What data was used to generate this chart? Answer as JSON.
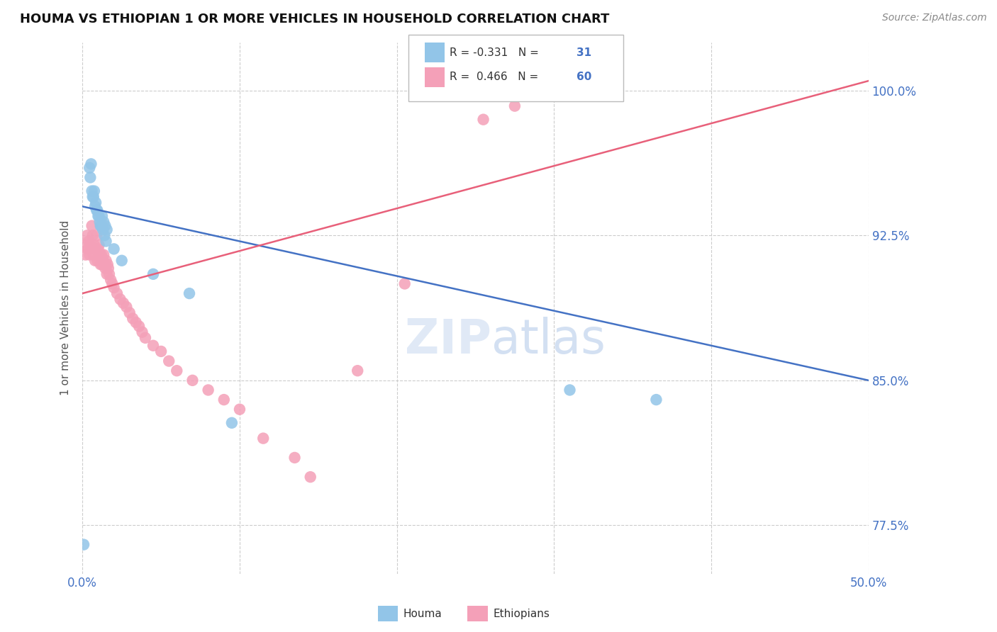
{
  "title": "HOUMA VS ETHIOPIAN 1 OR MORE VEHICLES IN HOUSEHOLD CORRELATION CHART",
  "source": "Source: ZipAtlas.com",
  "ylabel": "1 or more Vehicles in Household",
  "xlim": [
    0.0,
    50.0
  ],
  "ylim": [
    75.0,
    102.5
  ],
  "y_ticks": [
    77.5,
    85.0,
    92.5,
    100.0
  ],
  "houma_R": -0.331,
  "houma_N": 31,
  "ethiopian_R": 0.466,
  "ethiopian_N": 60,
  "houma_color": "#92C5E8",
  "ethiopian_color": "#F4A0B8",
  "houma_line_color": "#4472C4",
  "ethiopian_line_color": "#E8607A",
  "houma_x": [
    0.08,
    0.55,
    0.65,
    0.75,
    0.85,
    0.95,
    1.05,
    1.15,
    1.25,
    1.35,
    1.45,
    1.55,
    0.45,
    0.5,
    0.6,
    0.7,
    0.8,
    0.9,
    1.0,
    1.1,
    1.2,
    1.3,
    1.4,
    1.5,
    2.0,
    2.5,
    4.5,
    6.8,
    9.5,
    31.0,
    36.5
  ],
  "houma_y": [
    76.5,
    96.2,
    94.5,
    94.8,
    94.2,
    93.8,
    93.5,
    93.0,
    93.5,
    93.2,
    93.0,
    92.8,
    96.0,
    95.5,
    94.8,
    94.5,
    94.0,
    93.8,
    93.5,
    93.2,
    93.0,
    92.8,
    92.5,
    92.2,
    91.8,
    91.2,
    90.5,
    89.5,
    82.8,
    84.5,
    84.0
  ],
  "ethiopian_x": [
    0.1,
    0.2,
    0.3,
    0.35,
    0.4,
    0.45,
    0.5,
    0.55,
    0.6,
    0.65,
    0.7,
    0.75,
    0.8,
    0.85,
    0.9,
    0.95,
    1.0,
    1.05,
    1.1,
    1.15,
    1.2,
    1.25,
    1.3,
    1.35,
    1.4,
    1.45,
    1.5,
    1.55,
    1.6,
    1.65,
    1.7,
    1.8,
    1.9,
    2.0,
    2.2,
    2.4,
    2.6,
    2.8,
    3.0,
    3.2,
    3.4,
    3.6,
    3.8,
    4.0,
    4.5,
    5.0,
    5.5,
    6.0,
    7.0,
    8.0,
    9.0,
    10.0,
    11.5,
    13.5,
    14.5,
    17.5,
    20.5,
    25.5,
    27.5,
    30.0
  ],
  "ethiopian_y": [
    92.0,
    91.5,
    92.5,
    91.8,
    92.2,
    91.5,
    92.0,
    91.8,
    93.0,
    92.5,
    91.5,
    92.0,
    91.2,
    91.8,
    92.5,
    91.2,
    91.8,
    92.0,
    91.5,
    91.0,
    91.5,
    91.0,
    91.2,
    91.5,
    91.0,
    90.8,
    91.2,
    90.5,
    91.0,
    90.8,
    90.5,
    90.2,
    90.0,
    89.8,
    89.5,
    89.2,
    89.0,
    88.8,
    88.5,
    88.2,
    88.0,
    87.8,
    87.5,
    87.2,
    86.8,
    86.5,
    86.0,
    85.5,
    85.0,
    84.5,
    84.0,
    83.5,
    82.0,
    81.0,
    80.0,
    85.5,
    90.0,
    98.5,
    99.2,
    99.8
  ],
  "houma_line_x0": 0.0,
  "houma_line_y0": 94.0,
  "houma_line_x1": 50.0,
  "houma_line_y1": 85.0,
  "ethiopian_line_x0": 0.0,
  "ethiopian_line_y0": 89.5,
  "ethiopian_line_x1": 50.0,
  "ethiopian_line_y1": 100.5
}
